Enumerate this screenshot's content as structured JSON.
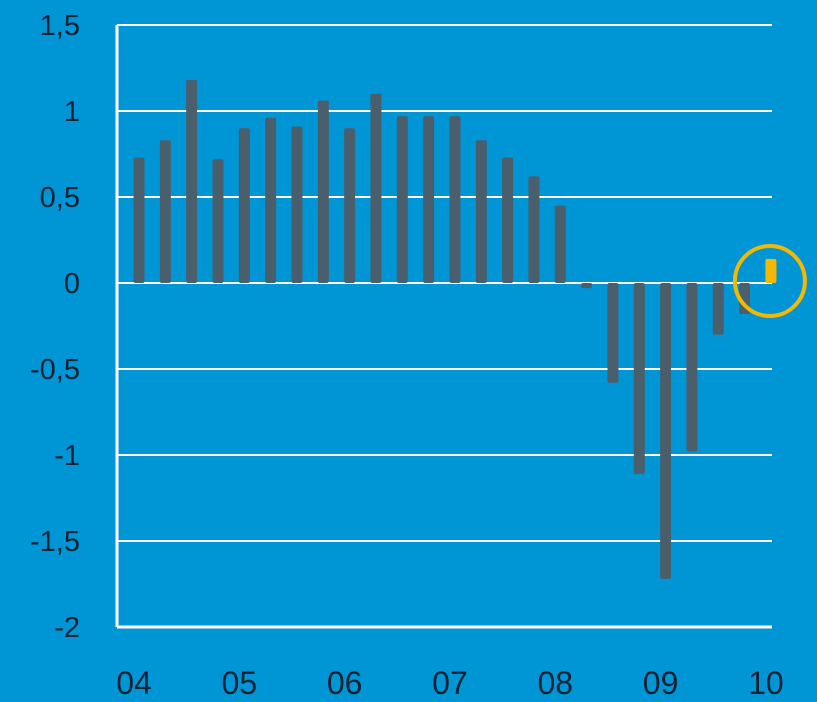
{
  "chart_data": {
    "type": "bar",
    "title": "",
    "xlabel": "",
    "ylabel": "",
    "ylim": [
      -2,
      1.5
    ],
    "y_ticks": [
      1.5,
      1,
      0.5,
      0,
      -0.5,
      -1,
      -1.5,
      -2
    ],
    "y_tick_labels": [
      "1,5",
      "1",
      "0,5",
      "0",
      "-0,5",
      "-1",
      "-1,5",
      "-2"
    ],
    "x_tick_labels": [
      "04",
      "05",
      "06",
      "07",
      "08",
      "09",
      "10"
    ],
    "x_tick_positions": [
      0,
      4,
      8,
      12,
      16,
      20,
      24
    ],
    "grid": "horizontal",
    "legend": "none",
    "values": [
      0.73,
      0.83,
      1.18,
      0.72,
      0.9,
      0.96,
      0.91,
      1.06,
      0.9,
      1.1,
      0.97,
      0.97,
      0.97,
      0.83,
      0.73,
      0.62,
      0.45,
      -0.03,
      -0.58,
      -1.11,
      -1.72,
      -0.98,
      -0.3,
      -0.18,
      0.14
    ],
    "highlighted_index": 24,
    "colors": {
      "background": "#0096d6",
      "bar": "#4a5e6c",
      "highlight": "#f5b800",
      "grid": "#ffffff",
      "text": "#0d2233"
    }
  }
}
